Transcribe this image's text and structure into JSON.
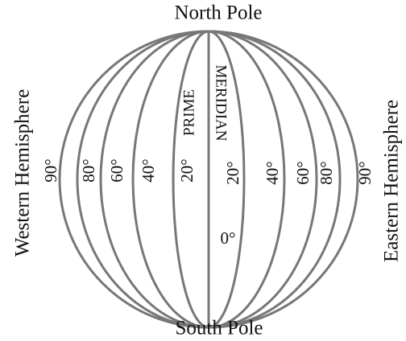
{
  "poles": {
    "north": "North Pole",
    "south": "South Pole"
  },
  "hemispheres": {
    "western": "Western Hemisphere",
    "eastern": "Eastern Hemisphere"
  },
  "prime_meridian": {
    "line1": "PRIME",
    "line2": "MERIDIAN",
    "label": "0°"
  },
  "west_labels": [
    "90°",
    "80°",
    "60°",
    "40°",
    "20°"
  ],
  "east_labels": [
    "20°",
    "40°",
    "60°",
    "80°",
    "90°"
  ]
}
